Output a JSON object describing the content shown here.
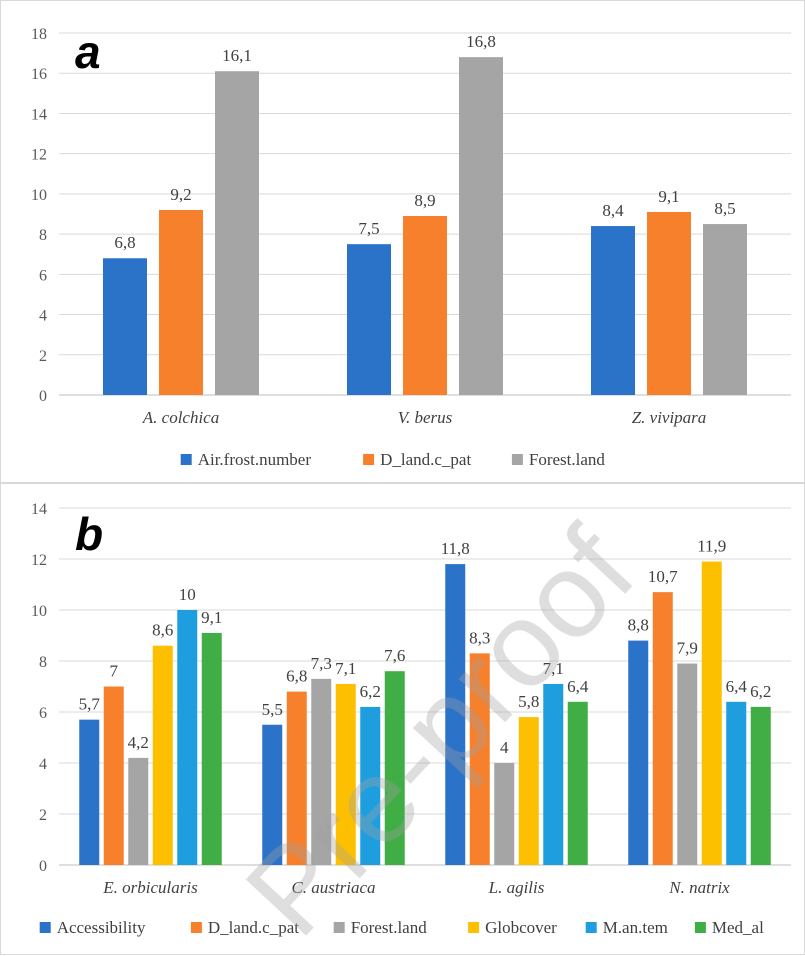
{
  "chart_data": [
    {
      "type": "bar",
      "panel_label": "a",
      "categories": [
        "A. colchica",
        "V. berus",
        "Z. vivipara"
      ],
      "series": [
        {
          "name": "Air.frost.number",
          "color": "#2a73c8",
          "values": [
            6.8,
            7.5,
            8.4
          ],
          "labels": [
            "6,8",
            "7,5",
            "8,4"
          ]
        },
        {
          "name": "D_land.c_pat",
          "color": "#f6802c",
          "values": [
            9.2,
            8.9,
            9.1
          ],
          "labels": [
            "9,2",
            "8,9",
            "9,1"
          ]
        },
        {
          "name": "Forest.land",
          "color": "#a5a5a5",
          "values": [
            16.1,
            16.8,
            8.5
          ],
          "labels": [
            "16,1",
            "16,8",
            "8,5"
          ]
        }
      ],
      "ylim": [
        0,
        18
      ],
      "yticks": [
        "0",
        "2",
        "4",
        "6",
        "8",
        "10",
        "12",
        "14",
        "16",
        "18"
      ],
      "grid": true,
      "legend": "bottom"
    },
    {
      "type": "bar",
      "panel_label": "b",
      "categories": [
        "E. orbicularis",
        "C. austriaca",
        "L. agilis",
        "N. natrix"
      ],
      "series": [
        {
          "name": "Accessibility",
          "color": "#2a73c8",
          "values": [
            5.7,
            5.5,
            11.8,
            8.8
          ],
          "labels": [
            "5,7",
            "5,5",
            "11,8",
            "8,8"
          ]
        },
        {
          "name": "D_land.c_pat",
          "color": "#f6802c",
          "values": [
            7.0,
            6.8,
            8.3,
            10.7
          ],
          "labels": [
            "7",
            "6,8",
            "8,3",
            "10,7"
          ]
        },
        {
          "name": "Forest.land",
          "color": "#a5a5a5",
          "values": [
            4.2,
            7.3,
            4.0,
            7.9
          ],
          "labels": [
            "4,2",
            "7,3",
            "4",
            "7,9"
          ]
        },
        {
          "name": "Globcover",
          "color": "#fdc000",
          "values": [
            8.6,
            7.1,
            5.8,
            11.9
          ],
          "labels": [
            "8,6",
            "7,1",
            "5,8",
            "11,9"
          ]
        },
        {
          "name": "M.an.tem",
          "color": "#1f9edf",
          "values": [
            10.0,
            6.2,
            7.1,
            6.4
          ],
          "labels": [
            "10",
            "6,2",
            "7,1",
            "6,4"
          ]
        },
        {
          "name": "Med_al",
          "color": "#40ad45",
          "values": [
            9.1,
            7.6,
            6.4,
            6.2
          ],
          "labels": [
            "9,1",
            "7,6",
            "6,4",
            "6,2"
          ]
        }
      ],
      "ylim": [
        0,
        14
      ],
      "yticks": [
        "0",
        "2",
        "4",
        "6",
        "8",
        "10",
        "12",
        "14"
      ],
      "grid": true,
      "legend": "bottom"
    }
  ],
  "watermark": "Pre-proof"
}
